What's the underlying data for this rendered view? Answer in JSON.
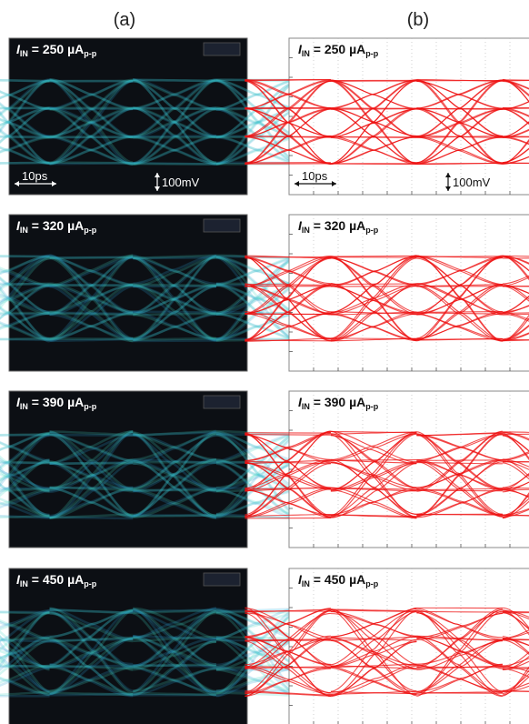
{
  "columns": [
    {
      "label": "(a)"
    },
    {
      "label": "(b)"
    }
  ],
  "rows": [
    {
      "symbol": "I",
      "subscript": "IN",
      "value": " = 250 µA",
      "unit_subscript": "p-p"
    },
    {
      "symbol": "I",
      "subscript": "IN",
      "value": " = 320 µA",
      "unit_subscript": "p-p"
    },
    {
      "symbol": "I",
      "subscript": "IN",
      "value": " = 390 µA",
      "unit_subscript": "p-p"
    },
    {
      "symbol": "I",
      "subscript": "IN",
      "value": " = 450 µA",
      "unit_subscript": "p-p"
    }
  ],
  "scale": {
    "time": "10ps",
    "voltage": "100mV"
  }
}
